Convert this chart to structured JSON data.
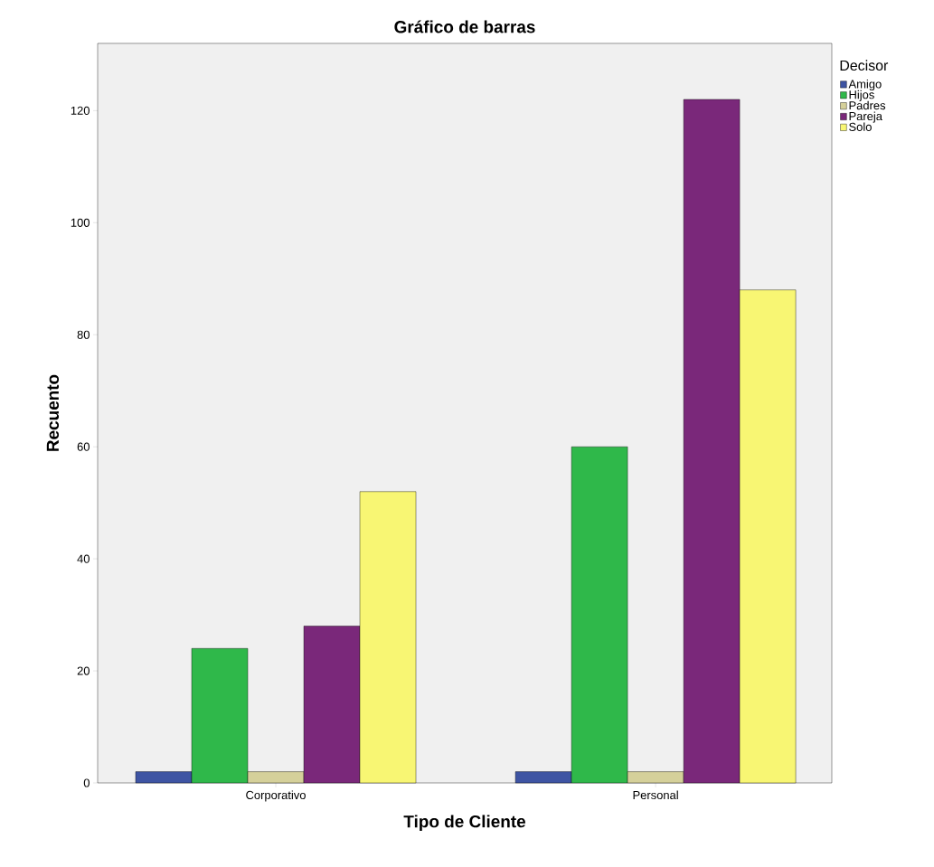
{
  "chart_data": {
    "type": "bar",
    "title": "Gráfico de barras",
    "xlabel": "Tipo de Cliente",
    "ylabel": "Recuento",
    "legend_title": "Decisor",
    "categories": [
      "Corporativo",
      "Personal"
    ],
    "series": [
      {
        "name": "Amigo",
        "color": "#3e54a3",
        "values": [
          2,
          2
        ]
      },
      {
        "name": "Hijos",
        "color": "#2fb84a",
        "values": [
          24,
          60
        ]
      },
      {
        "name": "Padres",
        "color": "#d5d09a",
        "values": [
          2,
          2
        ]
      },
      {
        "name": "Pareja",
        "color": "#7a287a",
        "values": [
          28,
          122
        ]
      },
      {
        "name": "Solo",
        "color": "#f8f673",
        "values": [
          52,
          88
        ]
      }
    ],
    "ylim": [
      0,
      132
    ],
    "yticks": [
      0,
      20,
      40,
      60,
      80,
      100,
      120
    ],
    "legend": "top right"
  }
}
